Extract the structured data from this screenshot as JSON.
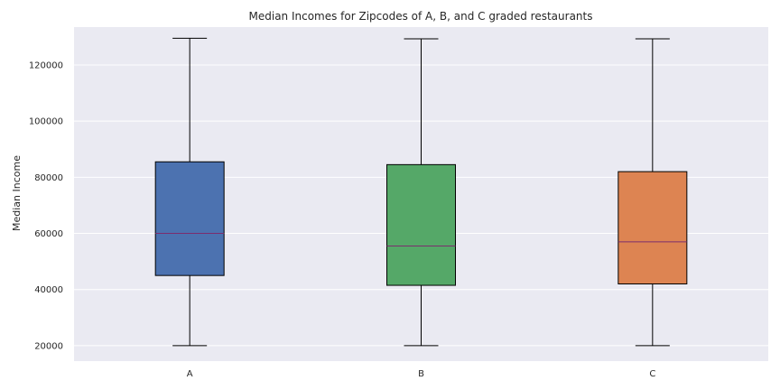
{
  "chart_data": {
    "type": "box",
    "title": "Median Incomes for Zipcodes of A, B, and C graded restaurants",
    "xlabel": "",
    "ylabel": "Median Income",
    "ylim": [
      14500,
      133500
    ],
    "yticks": [
      20000,
      40000,
      60000,
      80000,
      100000,
      120000
    ],
    "grid": true,
    "colors": {
      "background": "#eaeaf2",
      "grid": "#ffffff",
      "median": "#7b2d6e",
      "whisker": "#000000"
    },
    "categories": [
      "A",
      "B",
      "C"
    ],
    "boxes": [
      {
        "label": "A",
        "whisker_low": 20000,
        "q1": 45000,
        "median": 60000,
        "q3": 85500,
        "whisker_high": 129500,
        "color": "#4c72b0"
      },
      {
        "label": "B",
        "whisker_low": 20000,
        "q1": 41500,
        "median": 55500,
        "q3": 84500,
        "whisker_high": 129300,
        "color": "#55a868"
      },
      {
        "label": "C",
        "whisker_low": 20000,
        "q1": 42000,
        "median": 57000,
        "q3": 82000,
        "whisker_high": 129300,
        "color": "#dd8452"
      }
    ]
  }
}
